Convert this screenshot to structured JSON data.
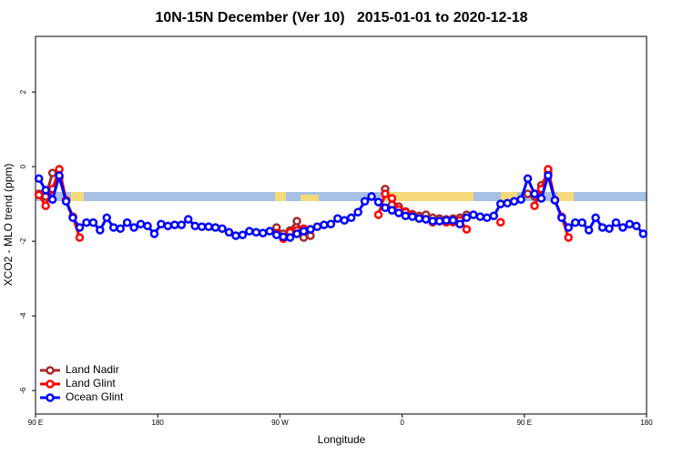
{
  "chart_data": {
    "type": "line",
    "title": "10N-15N December (Ver 10)   2015-01-01 to 2020-12-18",
    "x_label": "Longitude",
    "y_label": "XCO2 - MLO trend (ppm)",
    "xlim": [
      90,
      540
    ],
    "ylim": [
      -6.63,
      3.49
    ],
    "xticks": [
      {
        "value": 90,
        "label": "90 E"
      },
      180,
      {
        "value": 270,
        "label": "90 W"
      },
      {
        "value": 360,
        "label": "0"
      },
      {
        "value": 450,
        "label": "90 E"
      },
      {
        "value": 540,
        "label": "180"
      }
    ],
    "yticks": [
      -6,
      -4,
      -2,
      0,
      2
    ],
    "legend": "bottom-left",
    "x": [
      92.5,
      97.5,
      102.5,
      107.5,
      112.5,
      117.5,
      122.5,
      127.5,
      132.5,
      137.5,
      142.5,
      147.5,
      152.5,
      157.5,
      162.5,
      167.5,
      172.5,
      177.5,
      182.5,
      187.5,
      192.5,
      197.5,
      202.5,
      207.5,
      212.5,
      217.5,
      222.5,
      227.5,
      232.5,
      237.5,
      242.5,
      247.5,
      252.5,
      257.5,
      262.5,
      267.5,
      272.5,
      277.5,
      282.5,
      287.5,
      292.5,
      297.5,
      302.5,
      307.5,
      312.5,
      317.5,
      322.5,
      327.5,
      332.5,
      337.5,
      342.5,
      347.5,
      352.5,
      357.5,
      362.5,
      367.5,
      372.5,
      377.5,
      382.5,
      387.5,
      392.5,
      397.5,
      402.5,
      407.5,
      412.5,
      417.5,
      422.5,
      427.5,
      432.5,
      437.5,
      442.5,
      447.5,
      452.5,
      457.5,
      462.5,
      467.5,
      472.5,
      477.5,
      482.5,
      487.5,
      492.5,
      497.5,
      502.5,
      507.5,
      512.5,
      517.5,
      522.5,
      527.5,
      532.5,
      537.5
    ],
    "series": [
      {
        "name": "Land Nadir",
        "color": "#a52a2a",
        "values": [
          -0.73,
          -0.8,
          -0.17,
          -0.3,
          -0.9,
          null,
          null,
          null,
          null,
          null,
          null,
          null,
          null,
          null,
          null,
          null,
          null,
          null,
          null,
          null,
          null,
          null,
          null,
          null,
          null,
          null,
          null,
          null,
          null,
          null,
          null,
          null,
          null,
          null,
          null,
          -1.63,
          -1.8,
          -1.71,
          -1.46,
          -1.9,
          -1.85,
          null,
          null,
          null,
          null,
          null,
          null,
          null,
          null,
          null,
          null,
          -0.6,
          -1.02,
          -1.07,
          -1.2,
          -1.27,
          -1.32,
          -1.29,
          -1.37,
          -1.39,
          -1.41,
          -1.39,
          -1.37,
          -1.29,
          null,
          null,
          null,
          null,
          null,
          null,
          null,
          null,
          -0.73,
          -0.8,
          -0.5,
          -0.17,
          -0.9,
          null,
          null,
          null,
          null,
          null,
          null,
          null,
          null,
          null,
          null,
          null,
          null,
          null
        ]
      },
      {
        "name": "Land Glint",
        "color": "#ff0000",
        "values": [
          -0.76,
          -1.05,
          -0.6,
          -0.07,
          -0.9,
          -1.34,
          -1.9,
          null,
          null,
          null,
          null,
          null,
          null,
          null,
          null,
          null,
          null,
          null,
          null,
          null,
          null,
          null,
          null,
          null,
          null,
          null,
          null,
          null,
          null,
          null,
          null,
          null,
          null,
          null,
          null,
          -1.78,
          -1.93,
          -1.76,
          -1.71,
          -1.66,
          null,
          null,
          null,
          null,
          null,
          null,
          null,
          null,
          null,
          null,
          -1.29,
          -0.73,
          -0.85,
          -1.15,
          -1.22,
          -1.32,
          -1.39,
          -1.41,
          -1.49,
          -1.46,
          -1.49,
          -1.49,
          -1.44,
          -1.68,
          null,
          null,
          null,
          null,
          -1.49,
          null,
          null,
          null,
          null,
          -1.05,
          -0.6,
          -0.07,
          -0.9,
          -1.34,
          -1.9,
          null,
          null,
          null,
          null,
          null,
          null,
          null,
          null,
          null,
          null,
          null
        ]
      },
      {
        "name": "Ocean Glint",
        "color": "#0000ff",
        "values": [
          -0.32,
          -0.63,
          -0.88,
          -0.24,
          -0.93,
          -1.37,
          -1.63,
          -1.5,
          -1.5,
          -1.7,
          -1.37,
          -1.63,
          -1.66,
          -1.5,
          -1.63,
          -1.54,
          -1.59,
          -1.8,
          -1.54,
          -1.59,
          -1.56,
          -1.56,
          -1.41,
          -1.59,
          -1.61,
          -1.61,
          -1.63,
          -1.66,
          -1.76,
          -1.85,
          -1.83,
          -1.73,
          -1.76,
          -1.78,
          -1.73,
          -1.83,
          -1.88,
          -1.9,
          -1.8,
          -1.73,
          -1.68,
          -1.61,
          -1.56,
          -1.54,
          -1.39,
          -1.44,
          -1.37,
          -1.22,
          -0.93,
          -0.8,
          -0.95,
          -1.1,
          -1.17,
          -1.24,
          -1.32,
          -1.34,
          -1.39,
          -1.41,
          -1.46,
          -1.46,
          -1.44,
          -1.44,
          -1.54,
          -1.37,
          -1.29,
          -1.34,
          -1.37,
          -1.32,
          -1.0,
          -0.98,
          -0.93,
          -0.88,
          -0.32,
          -0.73,
          -0.85,
          -0.24,
          -0.9,
          -1.37,
          -1.63,
          -1.5,
          -1.5,
          -1.7,
          -1.37,
          -1.63,
          -1.66,
          -1.5,
          -1.63,
          -1.54,
          -1.59,
          -1.8
        ]
      }
    ]
  }
}
